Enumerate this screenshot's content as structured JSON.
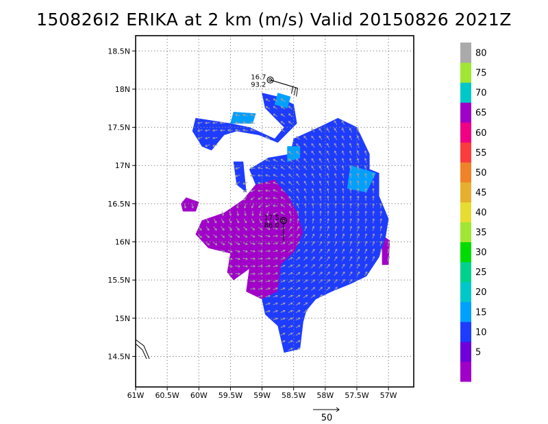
{
  "chart_data": {
    "type": "heatmap",
    "title": "150826I2 ERIKA at 2 km (m/s) Valid 20150826 2021Z",
    "xlabel": "",
    "ylabel": "",
    "xlim": [
      -61.0,
      -56.6
    ],
    "ylim": [
      14.1,
      18.7
    ],
    "x_ticks": [
      {
        "value": -61.0,
        "label": "61W"
      },
      {
        "value": -60.5,
        "label": "60.5W"
      },
      {
        "value": -60.0,
        "label": "60W"
      },
      {
        "value": -59.5,
        "label": "59.5W"
      },
      {
        "value": -59.0,
        "label": "59W"
      },
      {
        "value": -58.5,
        "label": "58.5W"
      },
      {
        "value": -58.0,
        "label": "58W"
      },
      {
        "value": -57.5,
        "label": "57.5W"
      },
      {
        "value": -57.0,
        "label": "57W"
      }
    ],
    "y_ticks": [
      {
        "value": 14.5,
        "label": "14.5N"
      },
      {
        "value": 15.0,
        "label": "15N"
      },
      {
        "value": 15.5,
        "label": "15.5N"
      },
      {
        "value": 16.0,
        "label": "16N"
      },
      {
        "value": 16.5,
        "label": "16.5N"
      },
      {
        "value": 17.0,
        "label": "17N"
      },
      {
        "value": 17.5,
        "label": "17.5N"
      },
      {
        "value": 18.0,
        "label": "18N"
      },
      {
        "value": 18.5,
        "label": "18.5N"
      }
    ],
    "grid": true,
    "colorbar": {
      "bins": [
        {
          "max": 5,
          "color": "#a000c8"
        },
        {
          "max": 10,
          "color": "#6e00dc"
        },
        {
          "max": 15,
          "color": "#1e3cff"
        },
        {
          "max": 20,
          "color": "#00a0ff"
        },
        {
          "max": 25,
          "color": "#00c8c8"
        },
        {
          "max": 30,
          "color": "#00d28c"
        },
        {
          "max": 35,
          "color": "#00dc00"
        },
        {
          "max": 40,
          "color": "#a0e632"
        },
        {
          "max": 45,
          "color": "#e6dc32"
        },
        {
          "max": 50,
          "color": "#e6af2d"
        },
        {
          "max": 55,
          "color": "#f08228"
        },
        {
          "max": 60,
          "color": "#fa3c3c"
        },
        {
          "max": 65,
          "color": "#f00082"
        },
        {
          "max": 70,
          "color": "#a000c8"
        },
        {
          "max": 75,
          "color": "#00c8c8"
        },
        {
          "max": 80,
          "color": "#a0e632"
        },
        {
          "max": 85,
          "color": "#aaaaaa"
        }
      ],
      "labels": [
        "5",
        "10",
        "15",
        "20",
        "25",
        "30",
        "35",
        "40",
        "45",
        "50",
        "55",
        "60",
        "65",
        "70",
        "75",
        "80"
      ]
    },
    "regions": [
      {
        "name": "5-10",
        "color": "#a000c8",
        "polygon": [
          [
            -59.2,
            15.65
          ],
          [
            -59.45,
            15.5
          ],
          [
            -59.55,
            15.6
          ],
          [
            -59.5,
            15.85
          ],
          [
            -59.85,
            15.92
          ],
          [
            -60.05,
            16.1
          ],
          [
            -59.95,
            16.28
          ],
          [
            -59.6,
            16.38
          ],
          [
            -59.3,
            16.55
          ],
          [
            -59.1,
            16.75
          ],
          [
            -58.8,
            16.82
          ],
          [
            -58.6,
            16.62
          ],
          [
            -58.45,
            16.4
          ],
          [
            -58.35,
            16.12
          ],
          [
            -58.48,
            15.88
          ],
          [
            -58.7,
            15.7
          ],
          [
            -58.75,
            15.35
          ],
          [
            -59.0,
            15.25
          ],
          [
            -59.25,
            15.35
          ]
        ]
      },
      {
        "name": "5-10",
        "color": "#a000c8",
        "polygon": [
          [
            -60.25,
            16.4
          ],
          [
            -60.05,
            16.4
          ],
          [
            -60.0,
            16.52
          ],
          [
            -60.2,
            16.58
          ],
          [
            -60.28,
            16.5
          ]
        ]
      },
      {
        "name": "5-10",
        "color": "#a000c8",
        "polygon": [
          [
            -57.1,
            16.08
          ],
          [
            -56.98,
            16.02
          ],
          [
            -57.0,
            15.7
          ],
          [
            -57.1,
            15.7
          ]
        ]
      },
      {
        "name": "10-15",
        "color": "#1e3cff",
        "polygon": [
          [
            -58.9,
            17.1
          ],
          [
            -58.55,
            17.15
          ],
          [
            -58.5,
            17.35
          ],
          [
            -58.1,
            17.5
          ],
          [
            -57.8,
            17.62
          ],
          [
            -57.5,
            17.5
          ],
          [
            -57.3,
            17.15
          ],
          [
            -57.3,
            16.95
          ],
          [
            -57.15,
            16.9
          ],
          [
            -57.15,
            16.6
          ],
          [
            -57.0,
            16.3
          ],
          [
            -57.05,
            16.05
          ],
          [
            -57.15,
            15.8
          ],
          [
            -57.35,
            15.55
          ],
          [
            -57.6,
            15.45
          ],
          [
            -57.9,
            15.35
          ],
          [
            -58.15,
            15.25
          ],
          [
            -58.3,
            15.1
          ],
          [
            -58.35,
            14.95
          ],
          [
            -58.4,
            14.6
          ],
          [
            -58.65,
            14.55
          ],
          [
            -58.75,
            14.9
          ],
          [
            -58.95,
            15.05
          ],
          [
            -59.0,
            15.25
          ],
          [
            -58.75,
            15.35
          ],
          [
            -58.7,
            15.7
          ],
          [
            -58.48,
            15.88
          ],
          [
            -58.35,
            16.12
          ],
          [
            -58.45,
            16.4
          ],
          [
            -58.6,
            16.62
          ],
          [
            -58.8,
            16.82
          ],
          [
            -59.1,
            16.75
          ],
          [
            -59.2,
            16.95
          ]
        ]
      },
      {
        "name": "10-15",
        "color": "#1e3cff",
        "polygon": [
          [
            -60.05,
            17.62
          ],
          [
            -59.5,
            17.55
          ],
          [
            -59.2,
            17.5
          ],
          [
            -58.8,
            17.35
          ],
          [
            -58.65,
            17.5
          ],
          [
            -58.95,
            17.75
          ],
          [
            -59.0,
            17.95
          ],
          [
            -58.75,
            17.9
          ],
          [
            -58.5,
            17.8
          ],
          [
            -58.45,
            17.55
          ],
          [
            -58.75,
            17.3
          ],
          [
            -59.05,
            17.4
          ],
          [
            -59.4,
            17.45
          ],
          [
            -59.6,
            17.4
          ],
          [
            -59.8,
            17.2
          ],
          [
            -59.95,
            17.25
          ],
          [
            -60.1,
            17.45
          ]
        ]
      },
      {
        "name": "10-15",
        "color": "#1e3cff",
        "polygon": [
          [
            -59.45,
            17.05
          ],
          [
            -59.3,
            17.05
          ],
          [
            -59.25,
            16.65
          ],
          [
            -59.4,
            16.75
          ]
        ]
      },
      {
        "name": "15-20",
        "color": "#00a0ff",
        "polygon": [
          [
            -57.6,
            17.0
          ],
          [
            -57.2,
            16.9
          ],
          [
            -57.35,
            16.65
          ],
          [
            -57.65,
            16.7
          ]
        ]
      },
      {
        "name": "15-20",
        "color": "#00a0ff",
        "polygon": [
          [
            -59.5,
            17.55
          ],
          [
            -59.15,
            17.55
          ],
          [
            -59.1,
            17.68
          ],
          [
            -59.45,
            17.7
          ]
        ]
      },
      {
        "name": "15-20",
        "color": "#00a0ff",
        "polygon": [
          [
            -58.8,
            17.8
          ],
          [
            -58.6,
            17.75
          ],
          [
            -58.55,
            17.9
          ],
          [
            -58.75,
            17.95
          ]
        ]
      },
      {
        "name": "15-20",
        "color": "#00a0ff",
        "polygon": [
          [
            -58.6,
            17.25
          ],
          [
            -58.4,
            17.25
          ],
          [
            -58.4,
            17.1
          ],
          [
            -58.6,
            17.05
          ]
        ]
      }
    ],
    "points": [
      {
        "lon": -58.87,
        "lat": 18.12,
        "label_top": "16.7",
        "label_bottom": "93.2"
      },
      {
        "lon": -58.66,
        "lat": 16.28,
        "label_top": "17.5",
        "label_bottom": "86.0"
      }
    ],
    "reference_vector": {
      "value": 50,
      "label": "50"
    }
  }
}
